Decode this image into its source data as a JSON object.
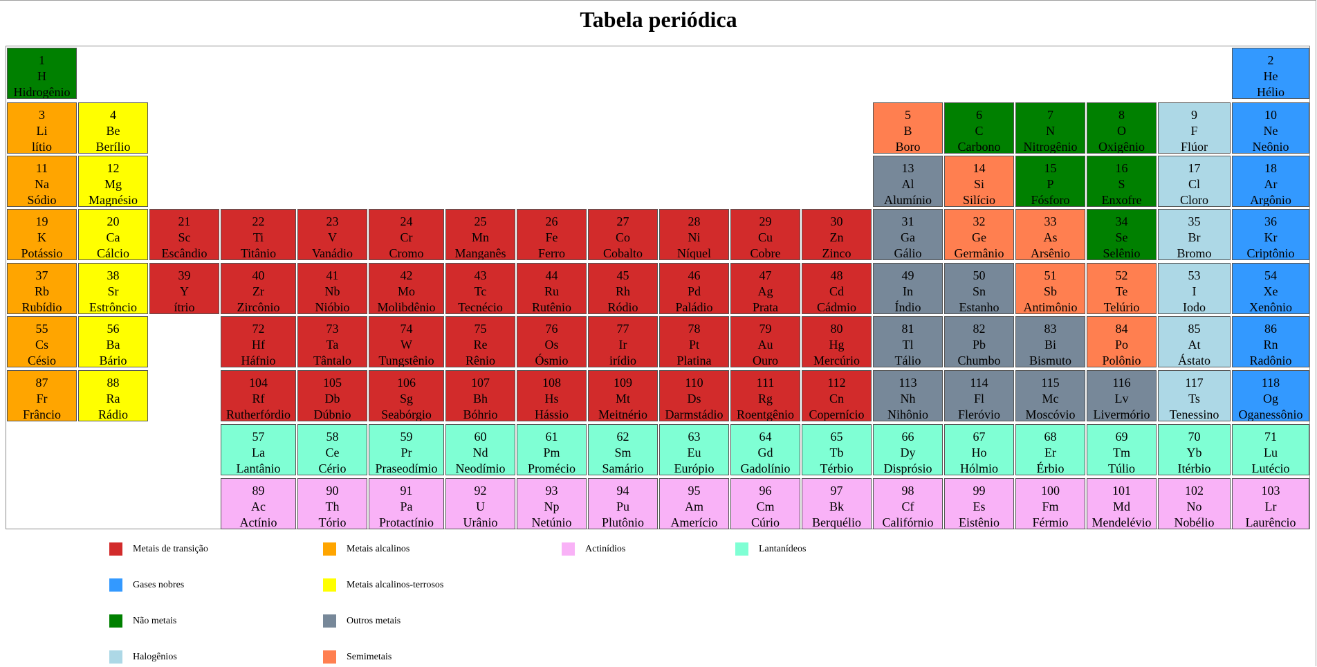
{
  "title": "Tabela periódica",
  "categories": {
    "transicao": {
      "label": "Metais de transição",
      "color": "#d22b2b"
    },
    "alcalino": {
      "label": "Metais alcalinos",
      "color": "#ffa500"
    },
    "actinideo": {
      "label": "Actinídios",
      "color": "#f9b2f7"
    },
    "lantanideo": {
      "label": "Lantanídeos",
      "color": "#7fffd4"
    },
    "nobre": {
      "label": "Gases nobres",
      "color": "#3399ff"
    },
    "alcalinoterroso": {
      "label": "Metais alcalinos-terrosos",
      "color": "#ffff00"
    },
    "naometal": {
      "label": "Não metais",
      "color": "#008000"
    },
    "outro": {
      "label": "Outros metais",
      "color": "#778899"
    },
    "halogenio": {
      "label": "Halogênios",
      "color": "#add8e6"
    },
    "semimetal": {
      "label": "Semimetais",
      "color": "#ff7f50"
    }
  },
  "legend_order": [
    [
      "transicao",
      "alcalino",
      "actinideo",
      "lantanideo"
    ],
    [
      "nobre",
      "alcalinoterroso"
    ],
    [
      "naometal",
      "outro"
    ],
    [
      "halogenio",
      "semimetal"
    ]
  ],
  "elements": [
    {
      "n": "1",
      "s": "H",
      "name": "Hidrogênio",
      "cat": "naometal",
      "row": 1,
      "col": 1
    },
    {
      "n": "2",
      "s": "He",
      "name": "Hélio",
      "cat": "nobre",
      "row": 1,
      "col": 18
    },
    {
      "n": "3",
      "s": "Li",
      "name": "lítio",
      "cat": "alcalino",
      "row": 2,
      "col": 1
    },
    {
      "n": "4",
      "s": "Be",
      "name": "Berílio",
      "cat": "alcalinoterroso",
      "row": 2,
      "col": 2
    },
    {
      "n": "5",
      "s": "B",
      "name": "Boro",
      "cat": "semimetal",
      "row": 2,
      "col": 13
    },
    {
      "n": "6",
      "s": "C",
      "name": "Carbono",
      "cat": "naometal",
      "row": 2,
      "col": 14
    },
    {
      "n": "7",
      "s": "N",
      "name": "Nitrogênio",
      "cat": "naometal",
      "row": 2,
      "col": 15
    },
    {
      "n": "8",
      "s": "O",
      "name": "Oxigênio",
      "cat": "naometal",
      "row": 2,
      "col": 16
    },
    {
      "n": "9",
      "s": "F",
      "name": "Flúor",
      "cat": "halogenio",
      "row": 2,
      "col": 17
    },
    {
      "n": "10",
      "s": "Ne",
      "name": "Neônio",
      "cat": "nobre",
      "row": 2,
      "col": 18
    },
    {
      "n": "11",
      "s": "Na",
      "name": "Sódio",
      "cat": "alcalino",
      "row": 3,
      "col": 1
    },
    {
      "n": "12",
      "s": "Mg",
      "name": "Magnésio",
      "cat": "alcalinoterroso",
      "row": 3,
      "col": 2
    },
    {
      "n": "13",
      "s": "Al",
      "name": "Alumínio",
      "cat": "outro",
      "row": 3,
      "col": 13
    },
    {
      "n": "14",
      "s": "Si",
      "name": "Silício",
      "cat": "semimetal",
      "row": 3,
      "col": 14
    },
    {
      "n": "15",
      "s": "P",
      "name": "Fósforo",
      "cat": "naometal",
      "row": 3,
      "col": 15
    },
    {
      "n": "16",
      "s": "S",
      "name": "Enxofre",
      "cat": "naometal",
      "row": 3,
      "col": 16
    },
    {
      "n": "17",
      "s": "Cl",
      "name": "Cloro",
      "cat": "halogenio",
      "row": 3,
      "col": 17
    },
    {
      "n": "18",
      "s": "Ar",
      "name": "Argônio",
      "cat": "nobre",
      "row": 3,
      "col": 18
    },
    {
      "n": "19",
      "s": "K",
      "name": "Potássio",
      "cat": "alcalino",
      "row": 4,
      "col": 1
    },
    {
      "n": "20",
      "s": "Ca",
      "name": "Cálcio",
      "cat": "alcalinoterroso",
      "row": 4,
      "col": 2
    },
    {
      "n": "21",
      "s": "Sc",
      "name": "Escândio",
      "cat": "transicao",
      "row": 4,
      "col": 3
    },
    {
      "n": "22",
      "s": "Ti",
      "name": "Titânio",
      "cat": "transicao",
      "row": 4,
      "col": 4
    },
    {
      "n": "23",
      "s": "V",
      "name": "Vanádio",
      "cat": "transicao",
      "row": 4,
      "col": 5
    },
    {
      "n": "24",
      "s": "Cr",
      "name": "Cromo",
      "cat": "transicao",
      "row": 4,
      "col": 6
    },
    {
      "n": "25",
      "s": "Mn",
      "name": "Manganês",
      "cat": "transicao",
      "row": 4,
      "col": 7
    },
    {
      "n": "26",
      "s": "Fe",
      "name": "Ferro",
      "cat": "transicao",
      "row": 4,
      "col": 8
    },
    {
      "n": "27",
      "s": "Co",
      "name": "Cobalto",
      "cat": "transicao",
      "row": 4,
      "col": 9
    },
    {
      "n": "28",
      "s": "Ni",
      "name": "Níquel",
      "cat": "transicao",
      "row": 4,
      "col": 10
    },
    {
      "n": "29",
      "s": "Cu",
      "name": "Cobre",
      "cat": "transicao",
      "row": 4,
      "col": 11
    },
    {
      "n": "30",
      "s": "Zn",
      "name": "Zinco",
      "cat": "transicao",
      "row": 4,
      "col": 12
    },
    {
      "n": "31",
      "s": "Ga",
      "name": "Gálio",
      "cat": "outro",
      "row": 4,
      "col": 13
    },
    {
      "n": "32",
      "s": "Ge",
      "name": "Germânio",
      "cat": "semimetal",
      "row": 4,
      "col": 14
    },
    {
      "n": "33",
      "s": "As",
      "name": "Arsênio",
      "cat": "semimetal",
      "row": 4,
      "col": 15
    },
    {
      "n": "34",
      "s": "Se",
      "name": "Selênio",
      "cat": "naometal",
      "row": 4,
      "col": 16
    },
    {
      "n": "35",
      "s": "Br",
      "name": "Bromo",
      "cat": "halogenio",
      "row": 4,
      "col": 17
    },
    {
      "n": "36",
      "s": "Kr",
      "name": "Criptônio",
      "cat": "nobre",
      "row": 4,
      "col": 18
    },
    {
      "n": "37",
      "s": "Rb",
      "name": "Rubídio",
      "cat": "alcalino",
      "row": 5,
      "col": 1
    },
    {
      "n": "38",
      "s": "Sr",
      "name": "Estrôncio",
      "cat": "alcalinoterroso",
      "row": 5,
      "col": 2
    },
    {
      "n": "39",
      "s": "Y",
      "name": "ítrio",
      "cat": "transicao",
      "row": 5,
      "col": 3
    },
    {
      "n": "40",
      "s": "Zr",
      "name": "Zircônio",
      "cat": "transicao",
      "row": 5,
      "col": 4
    },
    {
      "n": "41",
      "s": "Nb",
      "name": "Nióbio",
      "cat": "transicao",
      "row": 5,
      "col": 5
    },
    {
      "n": "42",
      "s": "Mo",
      "name": "Molibdênio",
      "cat": "transicao",
      "row": 5,
      "col": 6
    },
    {
      "n": "43",
      "s": "Tc",
      "name": "Tecnécio",
      "cat": "transicao",
      "row": 5,
      "col": 7
    },
    {
      "n": "44",
      "s": "Ru",
      "name": "Rutênio",
      "cat": "transicao",
      "row": 5,
      "col": 8
    },
    {
      "n": "45",
      "s": "Rh",
      "name": "Ródio",
      "cat": "transicao",
      "row": 5,
      "col": 9
    },
    {
      "n": "46",
      "s": "Pd",
      "name": "Paládio",
      "cat": "transicao",
      "row": 5,
      "col": 10
    },
    {
      "n": "47",
      "s": "Ag",
      "name": "Prata",
      "cat": "transicao",
      "row": 5,
      "col": 11
    },
    {
      "n": "48",
      "s": "Cd",
      "name": "Cádmio",
      "cat": "transicao",
      "row": 5,
      "col": 12
    },
    {
      "n": "49",
      "s": "In",
      "name": "Índio",
      "cat": "outro",
      "row": 5,
      "col": 13
    },
    {
      "n": "50",
      "s": "Sn",
      "name": "Estanho",
      "cat": "outro",
      "row": 5,
      "col": 14
    },
    {
      "n": "51",
      "s": "Sb",
      "name": "Antimônio",
      "cat": "semimetal",
      "row": 5,
      "col": 15
    },
    {
      "n": "52",
      "s": "Te",
      "name": "Telúrio",
      "cat": "semimetal",
      "row": 5,
      "col": 16
    },
    {
      "n": "53",
      "s": "I",
      "name": "Iodo",
      "cat": "halogenio",
      "row": 5,
      "col": 17
    },
    {
      "n": "54",
      "s": "Xe",
      "name": "Xenônio",
      "cat": "nobre",
      "row": 5,
      "col": 18
    },
    {
      "n": "55",
      "s": "Cs",
      "name": "Césio",
      "cat": "alcalino",
      "row": 6,
      "col": 1
    },
    {
      "n": "56",
      "s": "Ba",
      "name": "Bário",
      "cat": "alcalinoterroso",
      "row": 6,
      "col": 2
    },
    {
      "n": "72",
      "s": "Hf",
      "name": "Háfnio",
      "cat": "transicao",
      "row": 6,
      "col": 4
    },
    {
      "n": "73",
      "s": "Ta",
      "name": "Tântalo",
      "cat": "transicao",
      "row": 6,
      "col": 5
    },
    {
      "n": "74",
      "s": "W",
      "name": "Tungstênio",
      "cat": "transicao",
      "row": 6,
      "col": 6
    },
    {
      "n": "75",
      "s": "Re",
      "name": "Rênio",
      "cat": "transicao",
      "row": 6,
      "col": 7
    },
    {
      "n": "76",
      "s": "Os",
      "name": "Ósmio",
      "cat": "transicao",
      "row": 6,
      "col": 8
    },
    {
      "n": "77",
      "s": "Ir",
      "name": "irídio",
      "cat": "transicao",
      "row": 6,
      "col": 9
    },
    {
      "n": "78",
      "s": "Pt",
      "name": "Platina",
      "cat": "transicao",
      "row": 6,
      "col": 10
    },
    {
      "n": "79",
      "s": "Au",
      "name": "Ouro",
      "cat": "transicao",
      "row": 6,
      "col": 11
    },
    {
      "n": "80",
      "s": "Hg",
      "name": "Mercúrio",
      "cat": "transicao",
      "row": 6,
      "col": 12
    },
    {
      "n": "81",
      "s": "Tl",
      "name": "Tálio",
      "cat": "outro",
      "row": 6,
      "col": 13
    },
    {
      "n": "82",
      "s": "Pb",
      "name": "Chumbo",
      "cat": "outro",
      "row": 6,
      "col": 14
    },
    {
      "n": "83",
      "s": "Bi",
      "name": "Bismuto",
      "cat": "outro",
      "row": 6,
      "col": 15
    },
    {
      "n": "84",
      "s": "Po",
      "name": "Polônio",
      "cat": "semimetal",
      "row": 6,
      "col": 16
    },
    {
      "n": "85",
      "s": "At",
      "name": "Ástato",
      "cat": "halogenio",
      "row": 6,
      "col": 17
    },
    {
      "n": "86",
      "s": "Rn",
      "name": "Radônio",
      "cat": "nobre",
      "row": 6,
      "col": 18
    },
    {
      "n": "87",
      "s": "Fr",
      "name": "Frâncio",
      "cat": "alcalino",
      "row": 7,
      "col": 1
    },
    {
      "n": "88",
      "s": "Ra",
      "name": "Rádio",
      "cat": "alcalinoterroso",
      "row": 7,
      "col": 2
    },
    {
      "n": "104",
      "s": "Rf",
      "name": "Rutherfórdio",
      "cat": "transicao",
      "row": 7,
      "col": 4
    },
    {
      "n": "105",
      "s": "Db",
      "name": "Dúbnio",
      "cat": "transicao",
      "row": 7,
      "col": 5
    },
    {
      "n": "106",
      "s": "Sg",
      "name": "Seabórgio",
      "cat": "transicao",
      "row": 7,
      "col": 6
    },
    {
      "n": "107",
      "s": "Bh",
      "name": "Bóhrio",
      "cat": "transicao",
      "row": 7,
      "col": 7
    },
    {
      "n": "108",
      "s": "Hs",
      "name": "Hássio",
      "cat": "transicao",
      "row": 7,
      "col": 8
    },
    {
      "n": "109",
      "s": "Mt",
      "name": "Meitnério",
      "cat": "transicao",
      "row": 7,
      "col": 9
    },
    {
      "n": "110",
      "s": "Ds",
      "name": "Darmstádio",
      "cat": "transicao",
      "row": 7,
      "col": 10
    },
    {
      "n": "111",
      "s": "Rg",
      "name": "Roentgênio",
      "cat": "transicao",
      "row": 7,
      "col": 11
    },
    {
      "n": "112",
      "s": "Cn",
      "name": "Copernício",
      "cat": "transicao",
      "row": 7,
      "col": 12
    },
    {
      "n": "113",
      "s": "Nh",
      "name": "Nihônio",
      "cat": "outro",
      "row": 7,
      "col": 13
    },
    {
      "n": "114",
      "s": "Fl",
      "name": "Fleróvio",
      "cat": "outro",
      "row": 7,
      "col": 14
    },
    {
      "n": "115",
      "s": "Mc",
      "name": "Moscóvio",
      "cat": "outro",
      "row": 7,
      "col": 15
    },
    {
      "n": "116",
      "s": "Lv",
      "name": "Livermório",
      "cat": "outro",
      "row": 7,
      "col": 16
    },
    {
      "n": "117",
      "s": "Ts",
      "name": "Tenessino",
      "cat": "halogenio",
      "row": 7,
      "col": 17
    },
    {
      "n": "118",
      "s": "Og",
      "name": "Oganessônio",
      "cat": "nobre",
      "row": 7,
      "col": 18
    },
    {
      "n": "57",
      "s": "La",
      "name": "Lantânio",
      "cat": "lantanideo",
      "row": 8,
      "col": 4
    },
    {
      "n": "58",
      "s": "Ce",
      "name": "Cério",
      "cat": "lantanideo",
      "row": 8,
      "col": 5
    },
    {
      "n": "59",
      "s": "Pr",
      "name": "Praseodímio",
      "cat": "lantanideo",
      "row": 8,
      "col": 6
    },
    {
      "n": "60",
      "s": "Nd",
      "name": "Neodímio",
      "cat": "lantanideo",
      "row": 8,
      "col": 7
    },
    {
      "n": "61",
      "s": "Pm",
      "name": "Promécio",
      "cat": "lantanideo",
      "row": 8,
      "col": 8
    },
    {
      "n": "62",
      "s": "Sm",
      "name": "Samário",
      "cat": "lantanideo",
      "row": 8,
      "col": 9
    },
    {
      "n": "63",
      "s": "Eu",
      "name": "Európio",
      "cat": "lantanideo",
      "row": 8,
      "col": 10
    },
    {
      "n": "64",
      "s": "Gd",
      "name": "Gadolínio",
      "cat": "lantanideo",
      "row": 8,
      "col": 11
    },
    {
      "n": "65",
      "s": "Tb",
      "name": "Térbio",
      "cat": "lantanideo",
      "row": 8,
      "col": 12
    },
    {
      "n": "66",
      "s": "Dy",
      "name": "Disprósio",
      "cat": "lantanideo",
      "row": 8,
      "col": 13
    },
    {
      "n": "67",
      "s": "Ho",
      "name": "Hólmio",
      "cat": "lantanideo",
      "row": 8,
      "col": 14
    },
    {
      "n": "68",
      "s": "Er",
      "name": "Érbio",
      "cat": "lantanideo",
      "row": 8,
      "col": 15
    },
    {
      "n": "69",
      "s": "Tm",
      "name": "Túlio",
      "cat": "lantanideo",
      "row": 8,
      "col": 16
    },
    {
      "n": "70",
      "s": "Yb",
      "name": "Itérbio",
      "cat": "lantanideo",
      "row": 8,
      "col": 17
    },
    {
      "n": "71",
      "s": "Lu",
      "name": "Lutécio",
      "cat": "lantanideo",
      "row": 8,
      "col": 18
    },
    {
      "n": "89",
      "s": "Ac",
      "name": "Actínio",
      "cat": "actinideo",
      "row": 9,
      "col": 4
    },
    {
      "n": "90",
      "s": "Th",
      "name": "Tório",
      "cat": "actinideo",
      "row": 9,
      "col": 5
    },
    {
      "n": "91",
      "s": "Pa",
      "name": "Protactínio",
      "cat": "actinideo",
      "row": 9,
      "col": 6
    },
    {
      "n": "92",
      "s": "U",
      "name": "Urânio",
      "cat": "actinideo",
      "row": 9,
      "col": 7
    },
    {
      "n": "93",
      "s": "Np",
      "name": "Netúnio",
      "cat": "actinideo",
      "row": 9,
      "col": 8
    },
    {
      "n": "94",
      "s": "Pu",
      "name": "Plutônio",
      "cat": "actinideo",
      "row": 9,
      "col": 9
    },
    {
      "n": "95",
      "s": "Am",
      "name": "Amerício",
      "cat": "actinideo",
      "row": 9,
      "col": 10
    },
    {
      "n": "96",
      "s": "Cm",
      "name": "Cúrio",
      "cat": "actinideo",
      "row": 9,
      "col": 11
    },
    {
      "n": "97",
      "s": "Bk",
      "name": "Berquélio",
      "cat": "actinideo",
      "row": 9,
      "col": 12
    },
    {
      "n": "98",
      "s": "Cf",
      "name": "Califórnio",
      "cat": "actinideo",
      "row": 9,
      "col": 13
    },
    {
      "n": "99",
      "s": "Es",
      "name": "Eistênio",
      "cat": "actinideo",
      "row": 9,
      "col": 14
    },
    {
      "n": "100",
      "s": "Fm",
      "name": "Férmio",
      "cat": "actinideo",
      "row": 9,
      "col": 15
    },
    {
      "n": "101",
      "s": "Md",
      "name": "Mendelévio",
      "cat": "actinideo",
      "row": 9,
      "col": 16
    },
    {
      "n": "102",
      "s": "No",
      "name": "Nobélio",
      "cat": "actinideo",
      "row": 9,
      "col": 17
    },
    {
      "n": "103",
      "s": "Lr",
      "name": "Laurêncio",
      "cat": "actinideo",
      "row": 9,
      "col": 18
    }
  ]
}
